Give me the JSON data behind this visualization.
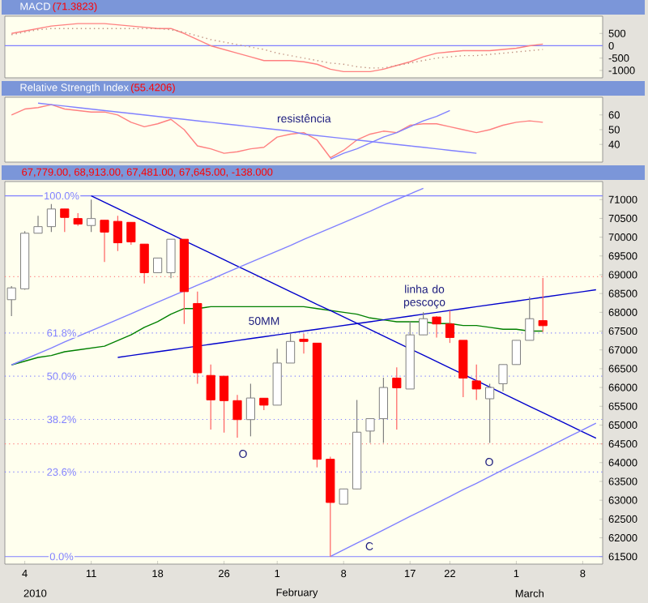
{
  "chart_data": [
    {
      "type": "line",
      "title": "MACD",
      "subtitle": "(71.3823)",
      "ylim": [
        -1300,
        1200
      ],
      "yticks": [
        500,
        0,
        -500,
        -1000
      ],
      "tick_labels": "y",
      "categories": [
        null,
        null,
        null,
        null,
        null,
        null,
        null,
        null,
        null,
        null,
        null,
        null,
        null,
        null,
        null,
        null,
        null,
        null,
        null,
        null,
        null,
        null,
        null,
        null,
        null,
        null,
        null,
        null,
        null,
        null,
        null,
        null,
        null,
        null,
        null,
        null,
        null,
        null,
        null,
        null,
        null,
        null,
        null,
        null,
        null
      ],
      "series": [
        {
          "color": "#ff8080",
          "line_style": "solid",
          "values": [
            500,
            600,
            700,
            800,
            850,
            900,
            900,
            900,
            850,
            800,
            750,
            700,
            700,
            500,
            250,
            0,
            -150,
            -300,
            -450,
            -600,
            -600,
            -600,
            -650,
            -750,
            -950,
            -1050,
            -1050,
            -1050,
            -950,
            -800,
            -650,
            -450,
            -300,
            -250,
            -200,
            -200,
            -200,
            -150,
            -100,
            0,
            70,
            null,
            null,
            null,
            null
          ]
        },
        {
          "color": "#c09080",
          "line_style": "dotted",
          "values": [
            450,
            550,
            650,
            700,
            700,
            700,
            700,
            700,
            700,
            700,
            700,
            700,
            650,
            550,
            400,
            250,
            150,
            50,
            -50,
            -150,
            -300,
            -400,
            -500,
            -600,
            -700,
            -750,
            -850,
            -900,
            -900,
            -800,
            -700,
            -600,
            -500,
            -450,
            -400,
            -400,
            -350,
            -300,
            -250,
            -200,
            -150,
            null,
            null,
            null,
            null
          ]
        }
      ],
      "ref_lines": [
        {
          "axis": "y",
          "value": 0,
          "color": "#8080ff",
          "line_style": "solid"
        }
      ]
    },
    {
      "type": "line",
      "title": "Relative Strength Index",
      "subtitle": "(55.4206)",
      "ylim": [
        28,
        72
      ],
      "yticks": [
        60,
        50,
        40
      ],
      "tick_labels": "y",
      "categories": [
        null,
        null,
        null,
        null,
        null,
        null,
        null,
        null,
        null,
        null,
        null,
        null,
        null,
        null,
        null,
        null,
        null,
        null,
        null,
        null,
        null,
        null,
        null,
        null,
        null,
        null,
        null,
        null,
        null,
        null,
        null,
        null,
        null,
        null,
        null,
        null,
        null,
        null,
        null,
        null,
        null,
        null,
        null,
        null,
        null
      ],
      "series": [
        {
          "color": "#ff8080",
          "line_style": "solid",
          "values": [
            60,
            64,
            65,
            67,
            64,
            63,
            62,
            62,
            60,
            55,
            52,
            54,
            57,
            50,
            39,
            37,
            34,
            35,
            37,
            38,
            45,
            47,
            48,
            43,
            31,
            36,
            43,
            47,
            49,
            48,
            53,
            54,
            54,
            52,
            50,
            48,
            50,
            53,
            55,
            56,
            55,
            null,
            null,
            null,
            null
          ]
        },
        {
          "color": "#8080ff",
          "line_style": "solid",
          "values": [
            null,
            null,
            68,
            67,
            66,
            65,
            64,
            63,
            62,
            61,
            60,
            59,
            58,
            57,
            56,
            55,
            54,
            53,
            52,
            51,
            50,
            49,
            47,
            46,
            45,
            44,
            43,
            42,
            41,
            40,
            39,
            38,
            37,
            36,
            35,
            34,
            null,
            null,
            null,
            null,
            null,
            null,
            null,
            null,
            null
          ]
        },
        {
          "color": "#8080ff",
          "line_style": "solid",
          "values": [
            null,
            null,
            null,
            null,
            null,
            null,
            null,
            null,
            null,
            null,
            null,
            null,
            null,
            null,
            null,
            null,
            null,
            null,
            null,
            null,
            null,
            null,
            null,
            null,
            30,
            34,
            37,
            41,
            45,
            48,
            52,
            56,
            59,
            63,
            null,
            null,
            null,
            null,
            null,
            null,
            null,
            null,
            null,
            null,
            null
          ]
        }
      ],
      "annotations": [
        "resistência"
      ]
    },
    {
      "type": "candlestick",
      "subtitle": "67,779.00, 68,913.00, 67,481.00, 67,645.00, -138.000",
      "ylim": [
        61300,
        71480
      ],
      "yticks": [
        61500,
        62000,
        62500,
        63000,
        63500,
        64000,
        64500,
        65000,
        65500,
        66000,
        66500,
        67000,
        67500,
        68000,
        68500,
        69000,
        69500,
        70000,
        70500,
        71000
      ],
      "categories": [
        null,
        "4",
        null,
        null,
        null,
        null,
        "11",
        null,
        null,
        null,
        null,
        "18",
        null,
        null,
        null,
        null,
        "26",
        null,
        null,
        null,
        "1",
        null,
        null,
        null,
        null,
        "8",
        null,
        null,
        null,
        null,
        "17",
        null,
        null,
        "22",
        null,
        null,
        null,
        null,
        "1",
        null,
        null,
        null,
        null,
        "8",
        null
      ],
      "ohlc": [
        [
          68336,
          68700,
          67900,
          68650
        ],
        [
          68625,
          70160,
          68600,
          70105
        ],
        [
          70105,
          70570,
          70105,
          70280
        ],
        [
          70280,
          70880,
          70135,
          70750
        ],
        [
          70750,
          70750,
          70140,
          70525
        ],
        [
          70495,
          70640,
          70300,
          70350
        ],
        [
          70310,
          71000,
          70140,
          70495
        ],
        [
          70450,
          70450,
          69340,
          70135
        ],
        [
          70420,
          70570,
          69630,
          69850
        ],
        [
          70395,
          70395,
          69800,
          69875
        ],
        [
          69815,
          69815,
          68770,
          69055
        ],
        [
          69055,
          69445,
          69055,
          69445
        ],
        [
          69055,
          69945,
          68910,
          69945
        ],
        [
          69945,
          69945,
          67690,
          68550
        ],
        [
          68235,
          68550,
          66100,
          66390
        ],
        [
          66320,
          66610,
          64880,
          65670
        ],
        [
          66300,
          66300,
          64800,
          65650
        ],
        [
          65650,
          65800,
          64665,
          65145
        ],
        [
          65145,
          66100,
          64700,
          65720
        ],
        [
          65715,
          65715,
          65400,
          65530
        ],
        [
          65530,
          67030,
          65530,
          66650
        ],
        [
          66650,
          67430,
          66650,
          67225
        ],
        [
          67285,
          67430,
          66900,
          67225
        ],
        [
          67180,
          67180,
          63875,
          64090
        ],
        [
          64090,
          64160,
          61500,
          62940
        ],
        [
          62895,
          63300,
          62895,
          63300
        ],
        [
          63300,
          65670,
          63300,
          64810
        ],
        [
          64840,
          65170,
          64525,
          65170
        ],
        [
          65170,
          66260,
          64525,
          66000
        ],
        [
          66250,
          66535,
          64880,
          65990
        ],
        [
          65960,
          67760,
          65960,
          67400
        ],
        [
          67400,
          68000,
          67400,
          67830
        ],
        [
          67875,
          67900,
          67330,
          67690
        ],
        [
          67690,
          68045,
          67185,
          67330
        ],
        [
          67255,
          67255,
          65745,
          66250
        ],
        [
          66175,
          66610,
          65670,
          65960
        ],
        [
          65700,
          66100,
          64525,
          66000
        ],
        [
          66100,
          66610,
          65900,
          66610
        ],
        [
          66610,
          67255,
          66610,
          67255
        ],
        [
          67255,
          68410,
          67255,
          67830
        ],
        [
          67779,
          68913,
          67481,
          67645
        ],
        null,
        null,
        null,
        null
      ],
      "colors": [
        "#ffffff",
        "#ffffff",
        "#ffffff",
        "#ffffff",
        "#ff0000",
        "#ff0000",
        "#ffffff",
        "#ff0000",
        "#ff0000",
        "#ff0000",
        "#ff0000",
        "#ffffff",
        "#ffffff",
        "#ff0000",
        "#ff0000",
        "#ff0000",
        "#ff0000",
        "#ff0000",
        "#ffffff",
        "#ff0000",
        "#ffffff",
        "#ffffff",
        "#ff0000",
        "#ff0000",
        "#ff0000",
        "#ffffff",
        "#ffffff",
        "#ffffff",
        "#ffffff",
        "#ff0000",
        "#ffffff",
        "#ffffff",
        "#ff0000",
        "#ff0000",
        "#ff0000",
        "#ff0000",
        "#ffffff",
        "#ffffff",
        "#ffffff",
        "#ffffff",
        "#ff0000",
        null,
        null,
        null,
        null
      ],
      "series": [
        {
          "type": "line",
          "color": "#008000",
          "values": [
            66600,
            66700,
            66800,
            66850,
            66950,
            67000,
            67050,
            67100,
            67250,
            67400,
            67600,
            67750,
            67950,
            68100,
            68100,
            68150,
            68150,
            68150,
            68150,
            68150,
            68150,
            68150,
            68150,
            68100,
            68050,
            68000,
            67950,
            67850,
            67800,
            67750,
            67750,
            67750,
            67700,
            67700,
            67650,
            67650,
            67600,
            67550,
            67550,
            67500,
            67500,
            null,
            null,
            null,
            null
          ]
        },
        {
          "type": "line",
          "color": "#0000cc",
          "values": [
            null,
            null,
            null,
            null,
            null,
            null,
            71100,
            70930,
            70760,
            70590,
            70420,
            70250,
            70080,
            69910,
            69740,
            69570,
            69400,
            69230,
            69060,
            68890,
            68720,
            68550,
            68380,
            68210,
            68050,
            67880,
            67710,
            67540,
            67370,
            67200,
            67030,
            66860,
            66690,
            66520,
            66350,
            66180,
            66010,
            65840,
            65670,
            65500,
            65330,
            65160,
            64990,
            64820,
            64650
          ]
        },
        {
          "type": "line",
          "color": "#0000cc",
          "values": [
            null,
            null,
            null,
            null,
            null,
            null,
            null,
            null,
            66800,
            66850,
            66900,
            66950,
            67000,
            67050,
            67100,
            67150,
            67200,
            67250,
            67300,
            67350,
            67400,
            67450,
            67500,
            67550,
            67600,
            67650,
            67700,
            67750,
            67800,
            67850,
            67900,
            67950,
            68000,
            68050,
            68100,
            68150,
            68200,
            68250,
            68300,
            68350,
            68400,
            68450,
            68500,
            68550,
            68600
          ]
        },
        {
          "type": "line",
          "color": "#8080ff",
          "values": [
            66600,
            66750,
            66900,
            67050,
            67210,
            67360,
            67510,
            67660,
            67810,
            67960,
            68120,
            68270,
            68420,
            68570,
            68720,
            68870,
            69030,
            69180,
            69330,
            69480,
            69630,
            69780,
            69940,
            70090,
            70240,
            70390,
            70540,
            70690,
            70850,
            71000,
            71150,
            71300,
            null,
            null,
            null,
            null,
            null,
            null,
            null,
            null,
            null,
            null,
            null,
            null,
            null
          ]
        },
        {
          "type": "line",
          "color": "#8080ff",
          "values": [
            null,
            null,
            null,
            null,
            null,
            null,
            null,
            null,
            null,
            null,
            null,
            null,
            null,
            null,
            null,
            null,
            null,
            null,
            null,
            null,
            null,
            null,
            null,
            null,
            61500,
            61680,
            61860,
            62030,
            62210,
            62390,
            62570,
            62740,
            62920,
            63100,
            63280,
            63450,
            63630,
            63810,
            63990,
            64160,
            64340,
            64520,
            64700,
            64870,
            65050
          ]
        }
      ],
      "ref_lines": [
        {
          "axis": "y",
          "value": 71100,
          "color": "#8080ff",
          "line_style": "solid"
        },
        {
          "axis": "y",
          "value": 67450,
          "color": "#8080ff",
          "line_style": "dotted"
        },
        {
          "axis": "y",
          "value": 66300,
          "color": "#8080ff",
          "line_style": "dotted"
        },
        {
          "axis": "y",
          "value": 65150,
          "color": "#8080ff",
          "line_style": "dotted"
        },
        {
          "axis": "y",
          "value": 63750,
          "color": "#8080ff",
          "line_style": "dotted"
        },
        {
          "axis": "y",
          "value": 61500,
          "color": "#8080ff",
          "line_style": "solid"
        },
        {
          "axis": "y",
          "value": 68950,
          "color": "#ff8080",
          "line_style": "dotted"
        },
        {
          "axis": "y",
          "value": 64500,
          "color": "#ff8080",
          "line_style": "dotted"
        }
      ],
      "annotations": [
        "100.0%",
        "61.8%",
        "50.0%",
        "38.2%",
        "23.6%",
        "0.0%",
        "50MM",
        "linha do pescoço",
        "O",
        "O",
        "C",
        "2010",
        "February",
        "March"
      ]
    }
  ]
}
